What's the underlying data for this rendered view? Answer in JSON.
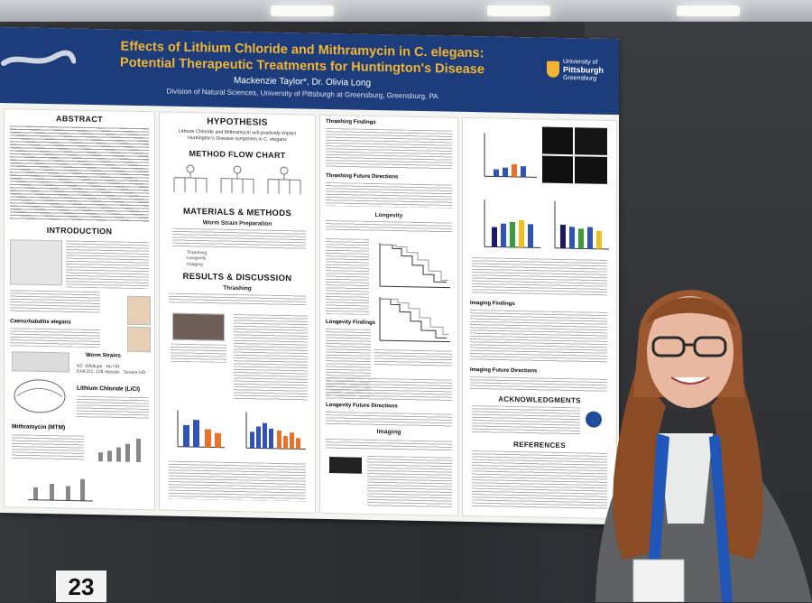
{
  "poster": {
    "title_line1": "Effects of Lithium Chloride and Mithramycin in C. elegans:",
    "title_line2": "Potential Therapeutic Treatments for Huntington's Disease",
    "authors": "Mackenzie Taylor*, Dr. Olivia Long",
    "affiliation": "Division of Natural Sciences, University of Pittsburgh at Greensburg, Greensburg, PA",
    "logo": {
      "line1": "University of",
      "line2": "Pittsburgh",
      "line3": "Greensburg"
    },
    "sections": {
      "abstract": "ABSTRACT",
      "introduction": "INTRODUCTION",
      "hypothesis": "HYPOTHESIS",
      "hypothesis_text": "Lithium Chloride and Mithramycin will positively impact Huntington's Disease symptoms in C. elegans",
      "method_flow": "METHOD FLOW CHART",
      "materials": "MATERIALS & METHODS",
      "worm_strain_prep": "Worm Strain Preparation",
      "results": "RESULTS & DISCUSSION",
      "thrashing": "Thrashing",
      "thrashing_findings": "Thrashing Findings",
      "thrashing_future": "Thrashing Future Directions",
      "longevity": "Longevity",
      "longevity_findings": "Longevity Findings",
      "longevity_future": "Longevity Future Directions",
      "imaging": "Imaging",
      "imaging_findings": "Imaging Findings",
      "imaging_future": "Imaging Future Directions",
      "acknowledgments": "ACKNOWLEDGMENTS",
      "references": "REFERENCES",
      "worm_strains": "Worm Strains",
      "lithium": "Lithium Chloride (LiCl)",
      "mithramycin": "Mithramycin (MTM)",
      "celegans": "Caenorhabditis elegans"
    },
    "strain_table": {
      "rows": [
        [
          "N2: Wildtype",
          "No HD"
        ],
        [
          "EAK101: 128 repeats",
          "Severe HD"
        ]
      ]
    },
    "materials_list": [
      "Thrashing",
      "Longevity",
      "Imaging"
    ],
    "badge": "23"
  },
  "colors": {
    "header": "#1d3c7b",
    "title": "#f2b534",
    "bar_blue": "#2f54b5",
    "bar_orange": "#e8722a",
    "bar_green": "#3a9b3a",
    "bar_yellow": "#f0c020"
  }
}
